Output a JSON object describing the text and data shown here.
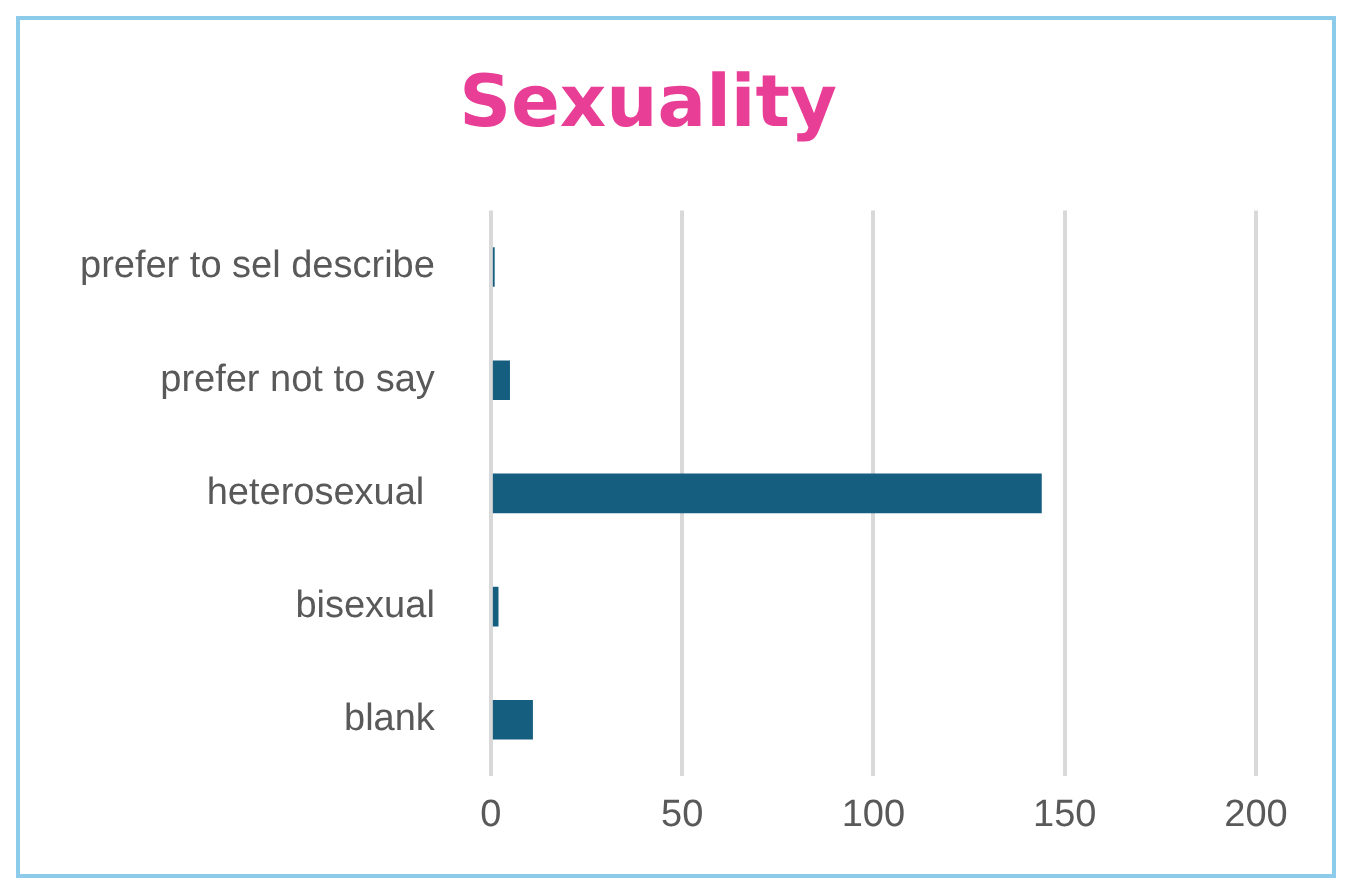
{
  "chart_data": {
    "type": "bar",
    "orientation": "horizontal",
    "title": "Sexuality",
    "categories": [
      "prefer to sel describe",
      "prefer not to say",
      "heterosexual ",
      "bisexual",
      "blank"
    ],
    "values": [
      1,
      5,
      144,
      2,
      11
    ],
    "color": "#165e80",
    "xlim": [
      0,
      200
    ],
    "xticks": [
      0,
      50,
      100,
      150,
      200
    ],
    "grid": "x",
    "legend": false
  }
}
